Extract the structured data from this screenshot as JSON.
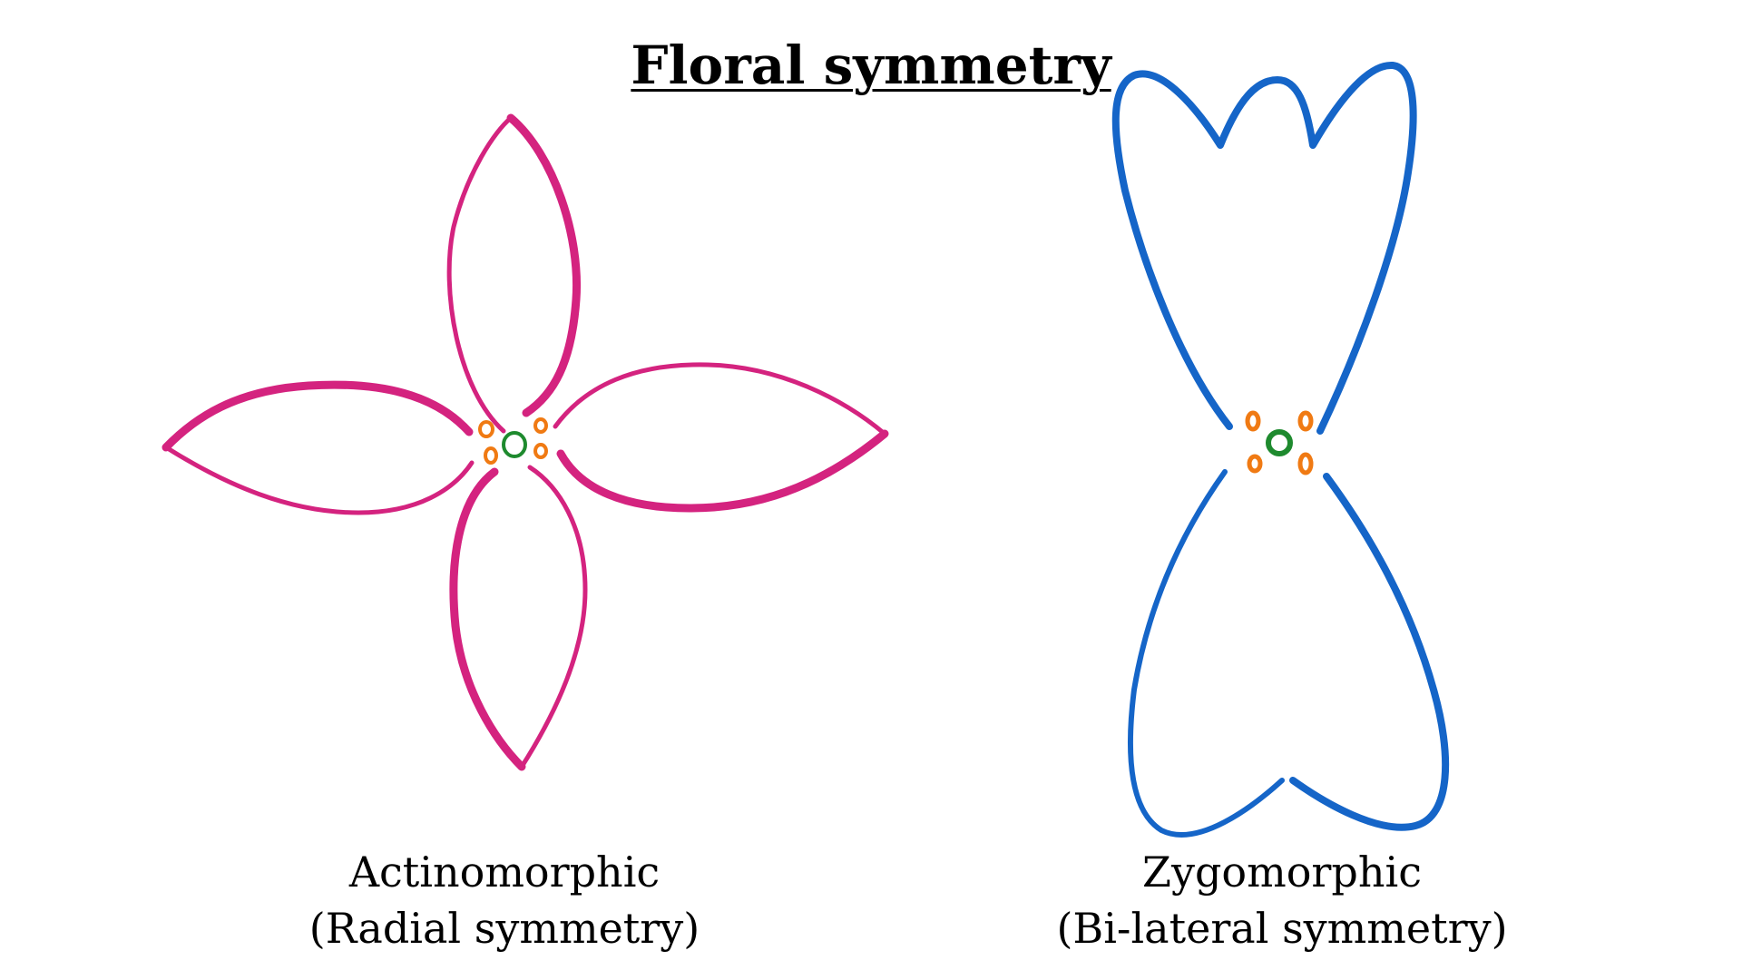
{
  "title": "Floral symmetry",
  "left_flower": {
    "name": "Actinomorphic",
    "subtitle": "(Radial symmetry)",
    "petal_color": "#D4237F",
    "stamen_color": "#F07A13",
    "pistil_color": "#1E8A2E",
    "petal_count": 4,
    "stamen_count": 4
  },
  "right_flower": {
    "name": "Zygomorphic",
    "subtitle": "(Bi-lateral symmetry)",
    "petal_color": "#1565C8",
    "stamen_color": "#F07A13",
    "pistil_color": "#1E8A2E",
    "petal_count": 2,
    "stamen_count": 4
  }
}
